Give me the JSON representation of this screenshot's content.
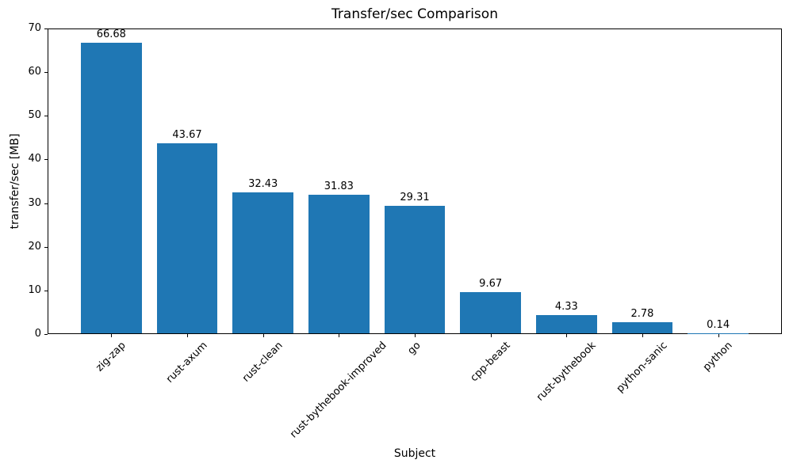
{
  "chart_data": {
    "type": "bar",
    "title": "Transfer/sec Comparison",
    "xlabel": "Subject",
    "ylabel": "transfer/sec [MB]",
    "categories": [
      "zig-zap",
      "rust-axum",
      "rust-clean",
      "rust-bythebook-improved",
      "go",
      "cpp-beast",
      "rust-bythebook",
      "python-sanic",
      "python"
    ],
    "values": [
      66.68,
      43.67,
      32.43,
      31.83,
      29.31,
      9.67,
      4.33,
      2.78,
      0.14
    ],
    "value_labels": [
      "66.68",
      "43.67",
      "32.43",
      "31.83",
      "29.31",
      "9.67",
      "4.33",
      "2.78",
      "0.14"
    ],
    "ylim": [
      0,
      70
    ],
    "yticks": [
      0,
      10,
      20,
      30,
      40,
      50,
      60,
      70
    ],
    "bar_color": "#1f77b4",
    "grid": false,
    "legend_position": "none",
    "xtick_rotation_deg": 45
  }
}
